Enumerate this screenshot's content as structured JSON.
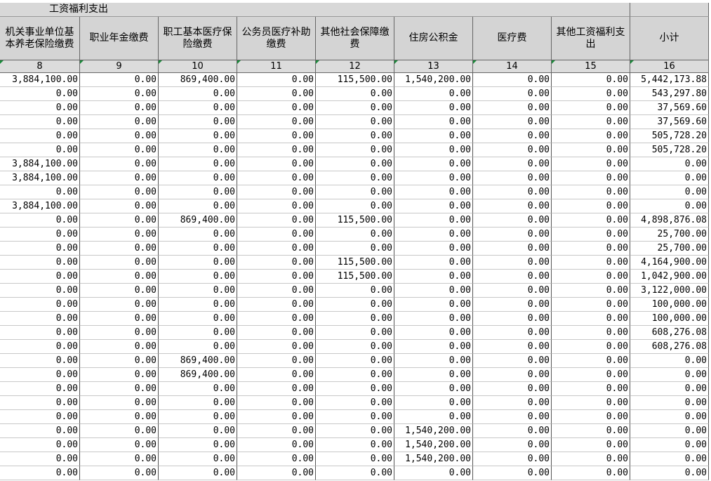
{
  "header": {
    "title": "工资福利支出"
  },
  "table": {
    "columns": [
      "机关事业单位基本养老保险缴费",
      "职业年金缴费",
      "职工基本医疗保险缴费",
      "公务员医疗补助缴费",
      "其他社会保障缴费",
      "住房公积金",
      "医疗费",
      "其他工资福利支出",
      "小计"
    ],
    "column_numbers": [
      "8",
      "9",
      "10",
      "11",
      "12",
      "13",
      "14",
      "15",
      "16"
    ],
    "rows": [
      [
        "3,884,100.00",
        "0.00",
        "869,400.00",
        "0.00",
        "115,500.00",
        "1,540,200.00",
        "0.00",
        "0.00",
        "5,442,173.88"
      ],
      [
        "0.00",
        "0.00",
        "0.00",
        "0.00",
        "0.00",
        "0.00",
        "0.00",
        "0.00",
        "543,297.80"
      ],
      [
        "0.00",
        "0.00",
        "0.00",
        "0.00",
        "0.00",
        "0.00",
        "0.00",
        "0.00",
        "37,569.60"
      ],
      [
        "0.00",
        "0.00",
        "0.00",
        "0.00",
        "0.00",
        "0.00",
        "0.00",
        "0.00",
        "37,569.60"
      ],
      [
        "0.00",
        "0.00",
        "0.00",
        "0.00",
        "0.00",
        "0.00",
        "0.00",
        "0.00",
        "505,728.20"
      ],
      [
        "0.00",
        "0.00",
        "0.00",
        "0.00",
        "0.00",
        "0.00",
        "0.00",
        "0.00",
        "505,728.20"
      ],
      [
        "3,884,100.00",
        "0.00",
        "0.00",
        "0.00",
        "0.00",
        "0.00",
        "0.00",
        "0.00",
        "0.00"
      ],
      [
        "3,884,100.00",
        "0.00",
        "0.00",
        "0.00",
        "0.00",
        "0.00",
        "0.00",
        "0.00",
        "0.00"
      ],
      [
        "0.00",
        "0.00",
        "0.00",
        "0.00",
        "0.00",
        "0.00",
        "0.00",
        "0.00",
        "0.00"
      ],
      [
        "3,884,100.00",
        "0.00",
        "0.00",
        "0.00",
        "0.00",
        "0.00",
        "0.00",
        "0.00",
        "0.00"
      ],
      [
        "0.00",
        "0.00",
        "869,400.00",
        "0.00",
        "115,500.00",
        "0.00",
        "0.00",
        "0.00",
        "4,898,876.08"
      ],
      [
        "0.00",
        "0.00",
        "0.00",
        "0.00",
        "0.00",
        "0.00",
        "0.00",
        "0.00",
        "25,700.00"
      ],
      [
        "0.00",
        "0.00",
        "0.00",
        "0.00",
        "0.00",
        "0.00",
        "0.00",
        "0.00",
        "25,700.00"
      ],
      [
        "0.00",
        "0.00",
        "0.00",
        "0.00",
        "115,500.00",
        "0.00",
        "0.00",
        "0.00",
        "4,164,900.00"
      ],
      [
        "0.00",
        "0.00",
        "0.00",
        "0.00",
        "115,500.00",
        "0.00",
        "0.00",
        "0.00",
        "1,042,900.00"
      ],
      [
        "0.00",
        "0.00",
        "0.00",
        "0.00",
        "0.00",
        "0.00",
        "0.00",
        "0.00",
        "3,122,000.00"
      ],
      [
        "0.00",
        "0.00",
        "0.00",
        "0.00",
        "0.00",
        "0.00",
        "0.00",
        "0.00",
        "100,000.00"
      ],
      [
        "0.00",
        "0.00",
        "0.00",
        "0.00",
        "0.00",
        "0.00",
        "0.00",
        "0.00",
        "100,000.00"
      ],
      [
        "0.00",
        "0.00",
        "0.00",
        "0.00",
        "0.00",
        "0.00",
        "0.00",
        "0.00",
        "608,276.08"
      ],
      [
        "0.00",
        "0.00",
        "0.00",
        "0.00",
        "0.00",
        "0.00",
        "0.00",
        "0.00",
        "608,276.08"
      ],
      [
        "0.00",
        "0.00",
        "869,400.00",
        "0.00",
        "0.00",
        "0.00",
        "0.00",
        "0.00",
        "0.00"
      ],
      [
        "0.00",
        "0.00",
        "869,400.00",
        "0.00",
        "0.00",
        "0.00",
        "0.00",
        "0.00",
        "0.00"
      ],
      [
        "0.00",
        "0.00",
        "0.00",
        "0.00",
        "0.00",
        "0.00",
        "0.00",
        "0.00",
        "0.00"
      ],
      [
        "0.00",
        "0.00",
        "0.00",
        "0.00",
        "0.00",
        "0.00",
        "0.00",
        "0.00",
        "0.00"
      ],
      [
        "0.00",
        "0.00",
        "0.00",
        "0.00",
        "0.00",
        "0.00",
        "0.00",
        "0.00",
        "0.00"
      ],
      [
        "0.00",
        "0.00",
        "0.00",
        "0.00",
        "0.00",
        "1,540,200.00",
        "0.00",
        "0.00",
        "0.00"
      ],
      [
        "0.00",
        "0.00",
        "0.00",
        "0.00",
        "0.00",
        "1,540,200.00",
        "0.00",
        "0.00",
        "0.00"
      ],
      [
        "0.00",
        "0.00",
        "0.00",
        "0.00",
        "0.00",
        "1,540,200.00",
        "0.00",
        "0.00",
        "0.00"
      ],
      [
        "0.00",
        "0.00",
        "0.00",
        "0.00",
        "0.00",
        "0.00",
        "0.00",
        "0.00",
        "0.00"
      ]
    ]
  }
}
